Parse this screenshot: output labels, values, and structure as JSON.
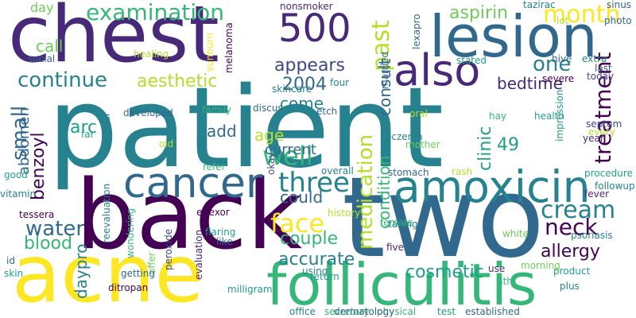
{
  "colors": {
    "background": "#ffffff",
    "palette": [
      "#440154",
      "#482878",
      "#3e4989",
      "#31688e",
      "#26828e",
      "#1f9e89",
      "#35b779",
      "#6ece58",
      "#b5de2b",
      "#fde725"
    ]
  },
  "words": [
    "patient",
    "back",
    "two",
    "chest",
    "acne",
    "folliculitis",
    "lesion",
    "cancer",
    "amoxicin",
    "also",
    "500",
    "examination",
    "past",
    "month",
    "treatment",
    "medication",
    "continue",
    "aesthetic",
    "three",
    "face",
    "cream",
    "neck",
    "water",
    "blood",
    "benzoyl",
    "abdomen",
    "small",
    "accurate",
    "allergy",
    "cosmetic",
    "couple",
    "well",
    "current",
    "age",
    "clinic",
    "condition",
    "consult",
    "aspirin",
    "appears",
    "come",
    "2004",
    "one",
    "bedtime",
    "49",
    "arc",
    "add",
    "could",
    "daypro",
    "call",
    "day",
    "nonsmoker",
    "melanoma",
    "sunburn",
    "social",
    "healing",
    "skincare",
    "married",
    "lexapro",
    "taziraс",
    "sinus",
    "photo",
    "lot",
    "extra",
    "hive",
    "last",
    "today",
    "stated",
    "severe",
    "four",
    "etch",
    "discus",
    "developed",
    "family",
    "oral",
    "hay",
    "health",
    "septum",
    "every",
    "year",
    "eczema",
    "mother",
    "facial",
    "far",
    "old",
    "impression",
    "vitamin",
    "good",
    "refer",
    "okay",
    "overall",
    "stomach",
    "rash",
    "procedure",
    "followup",
    "fever",
    "tessera",
    "reevaluation",
    "effexor",
    "flaring",
    "history",
    "wondering",
    "offer",
    "like",
    "female",
    "five",
    "taking",
    "white",
    "psoriasis",
    "id",
    "skin",
    "getting",
    "ditropan",
    "peroxide",
    "evaluation",
    "milligram",
    "using",
    "return",
    "secretary",
    "physical",
    "test",
    "use",
    "nth",
    "product",
    "morning",
    "plus",
    "office",
    "dermatology",
    "established"
  ]
}
